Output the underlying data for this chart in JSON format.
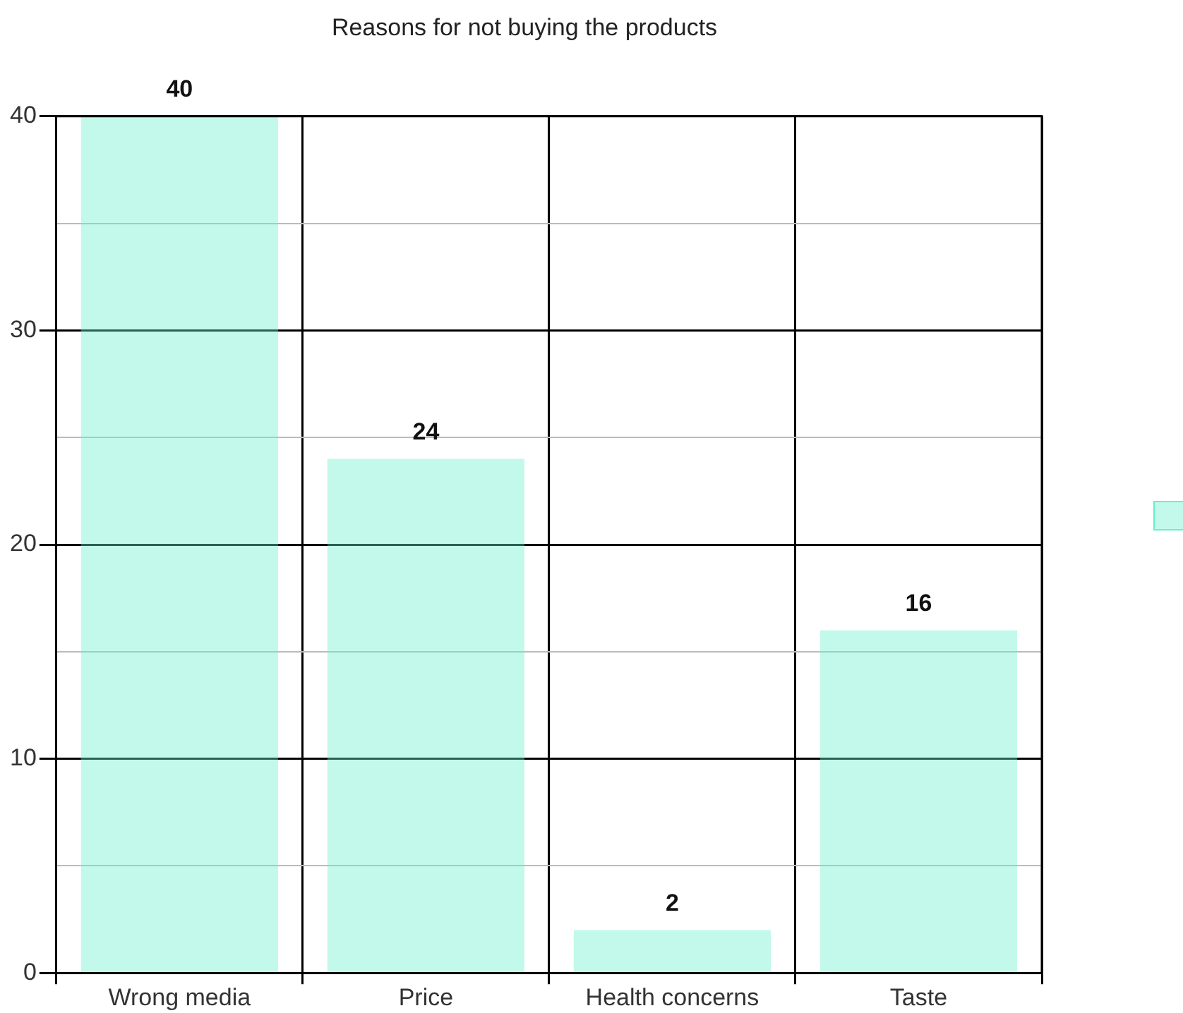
{
  "chart_data": {
    "type": "bar",
    "title": "Reasons for not buying the products",
    "categories": [
      "Wrong media",
      "Price",
      "Health concerns",
      "Taste"
    ],
    "values": [
      40,
      24,
      2,
      16
    ],
    "color": "#66efcc",
    "ylim": [
      0,
      40
    ],
    "yticks": [
      0,
      {
        "value": 5,
        "label": null
      },
      10,
      {
        "value": 15,
        "label": null
      },
      20,
      {
        "value": 25,
        "label": null
      },
      30,
      {
        "value": 35,
        "label": null
      },
      40
    ],
    "grid": true,
    "data_labels": true
  }
}
